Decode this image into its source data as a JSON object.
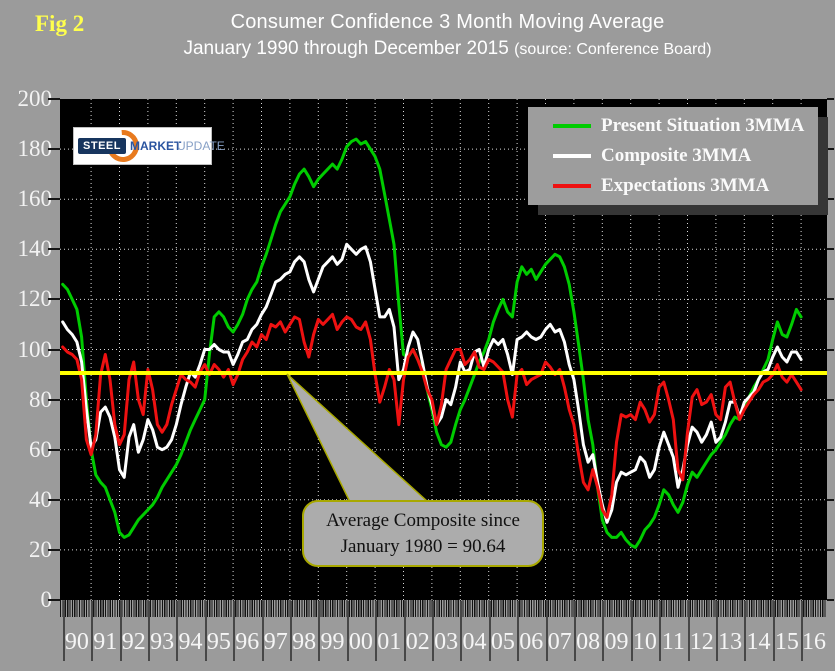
{
  "header": {
    "fig_label": "Fig 2",
    "title": "Consumer Confidence 3 Month Moving Average",
    "subtitle": "January 1990 through December 2015",
    "subtitle_source": "(source: Conference Board)"
  },
  "logo": {
    "word1": "STEEL",
    "word2": "MARKET",
    "word3": "UPDATE"
  },
  "legend": {
    "items": [
      {
        "label": "Present Situation 3MMA",
        "color": "#00CC00"
      },
      {
        "label": "Composite 3MMA",
        "color": "#FFFFFF"
      },
      {
        "label": "Expectations 3MMA",
        "color": "#EE1111"
      }
    ]
  },
  "callout": {
    "line1": "Average Composite since",
    "line2": "January 1980 = 90.64"
  },
  "colors": {
    "background": "#9B9B9B",
    "plot_background": "#000000",
    "grid": "#FFFFFF",
    "average_line": "#FFFF00",
    "axis_text": "#F5F5F5"
  },
  "chart_data": {
    "type": "line",
    "title": "Consumer Confidence 3 Month Moving Average",
    "x_start_year": 1990,
    "x_step_months": 2,
    "x_tick_labels": [
      "90",
      "91",
      "92",
      "93",
      "94",
      "95",
      "96",
      "97",
      "98",
      "99",
      "00",
      "01",
      "02",
      "03",
      "04",
      "05",
      "06",
      "07",
      "08",
      "09",
      "10",
      "11",
      "12",
      "13",
      "14",
      "15",
      "16"
    ],
    "y_tick_labels": [
      "200",
      "180",
      "160",
      "140",
      "120",
      "100",
      "80",
      "60",
      "40",
      "20",
      "0"
    ],
    "ylim": [
      0,
      200
    ],
    "y_tick_step": 20,
    "grid": "dotted",
    "legend_position": "top-right",
    "average_line": {
      "value": 90.64,
      "color": "#FFFF00",
      "label": "Average Composite since January 1980 = 90.64"
    },
    "series": [
      {
        "name": "Present Situation 3MMA",
        "color": "#00CC00",
        "values": [
          126,
          124,
          120,
          116,
          105,
          80,
          60,
          50,
          47,
          45,
          40,
          35,
          27,
          25,
          26,
          29,
          32,
          34,
          36,
          38,
          41,
          45,
          48,
          51,
          54,
          58,
          63,
          68,
          72,
          76,
          80,
          98,
          113,
          115,
          113,
          109,
          107,
          110,
          114,
          120,
          124,
          127,
          133,
          138,
          144,
          150,
          155,
          158,
          161,
          166,
          170,
          172,
          169,
          165,
          168,
          170,
          172,
          174,
          172,
          176,
          181,
          183,
          184,
          182,
          183,
          180,
          177,
          172,
          162,
          152,
          142,
          118,
          98,
          97,
          100,
          96,
          92,
          84,
          76,
          67,
          62,
          61,
          63,
          70,
          76,
          80,
          85,
          90,
          95,
          99,
          104,
          111,
          116,
          120,
          115,
          113,
          127,
          133,
          130,
          132,
          128,
          131,
          134,
          136,
          138,
          137,
          133,
          126,
          115,
          102,
          88,
          72,
          62,
          45,
          32,
          27,
          25,
          25,
          27,
          24,
          22,
          21,
          24,
          28,
          30,
          33,
          38,
          44,
          42,
          38,
          35,
          39,
          46,
          51,
          49,
          52,
          55,
          58,
          60,
          63,
          66,
          70,
          73,
          72,
          77,
          81,
          85,
          88,
          92,
          96,
          104,
          111,
          106,
          105,
          110,
          116,
          113
        ]
      },
      {
        "name": "Composite 3MMA",
        "color": "#FFFFFF",
        "values": [
          111,
          108,
          106,
          103,
          95,
          76,
          61,
          64,
          75,
          77,
          73,
          65,
          52,
          49,
          65,
          70,
          59,
          64,
          72,
          68,
          61,
          60,
          61,
          64,
          70,
          78,
          85,
          91,
          89,
          94,
          100,
          100,
          102,
          100,
          99,
          99,
          94,
          98,
          103,
          104,
          108,
          110,
          114,
          117,
          122,
          127,
          128,
          130,
          131,
          135,
          137,
          135,
          128,
          123,
          128,
          133,
          135,
          137,
          134,
          136,
          142,
          140,
          138,
          140,
          141,
          135,
          124,
          113,
          113,
          116,
          109,
          88,
          92,
          101,
          107,
          104,
          95,
          85,
          78,
          70,
          73,
          80,
          78,
          85,
          95,
          91,
          92,
          99,
          100,
          93,
          100,
          104,
          102,
          104,
          98,
          90,
          104,
          105,
          107,
          105,
          104,
          105,
          108,
          110,
          107,
          108,
          103,
          94,
          88,
          76,
          62,
          55,
          58,
          47,
          38,
          31,
          36,
          47,
          51,
          50,
          51,
          52,
          57,
          55,
          49,
          52,
          61,
          67,
          62,
          57,
          45,
          52,
          62,
          69,
          67,
          63,
          66,
          71,
          63,
          65,
          71,
          79,
          79,
          73,
          79,
          81,
          83,
          88,
          91,
          92,
          97,
          101,
          97,
          95,
          99,
          99,
          96
        ]
      },
      {
        "name": "Expectations 3MMA",
        "color": "#EE1111",
        "values": [
          101,
          99,
          98,
          96,
          88,
          64,
          58,
          66,
          90,
          98,
          88,
          70,
          62,
          66,
          88,
          95,
          80,
          74,
          92,
          84,
          70,
          67,
          70,
          78,
          84,
          90,
          88,
          87,
          85,
          91,
          94,
          90,
          94,
          92,
          89,
          92,
          86,
          90,
          96,
          99,
          103,
          101,
          106,
          104,
          110,
          109,
          111,
          107,
          110,
          113,
          112,
          103,
          97,
          106,
          112,
          110,
          112,
          114,
          108,
          111,
          113,
          112,
          109,
          108,
          111,
          104,
          90,
          79,
          85,
          92,
          88,
          70,
          88,
          97,
          100,
          96,
          91,
          84,
          80,
          70,
          78,
          92,
          96,
          100,
          100,
          94,
          96,
          99,
          93,
          92,
          96,
          95,
          93,
          91,
          80,
          73,
          90,
          92,
          86,
          88,
          89,
          90,
          95,
          93,
          90,
          92,
          85,
          76,
          70,
          58,
          47,
          44,
          52,
          45,
          36,
          33,
          42,
          63,
          74,
          73,
          74,
          72,
          79,
          76,
          71,
          74,
          85,
          87,
          80,
          72,
          52,
          48,
          67,
          81,
          84,
          78,
          79,
          82,
          74,
          72,
          85,
          87,
          79,
          72,
          76,
          79,
          82,
          84,
          87,
          88,
          90,
          94,
          89,
          87,
          90,
          87,
          84
        ]
      }
    ]
  }
}
